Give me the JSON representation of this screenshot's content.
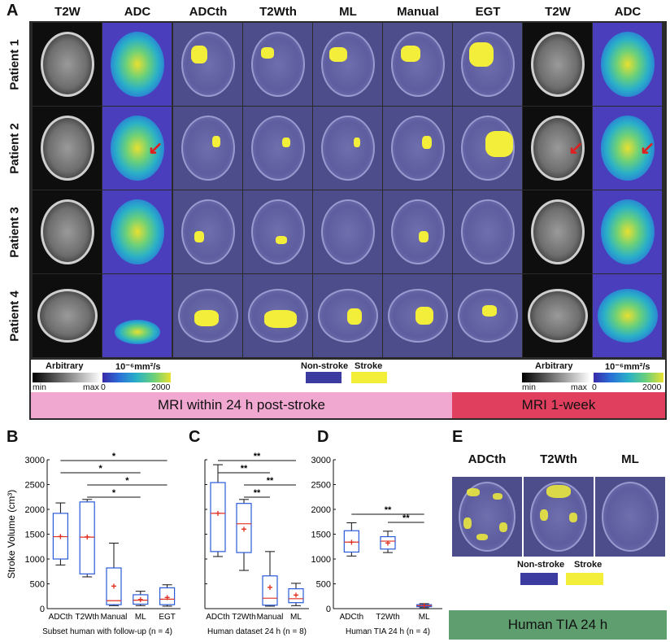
{
  "panels": {
    "A": "A",
    "B": "B",
    "C": "C",
    "D": "D",
    "E": "E"
  },
  "panelA": {
    "columns": [
      "T2W",
      "ADC",
      "ADCth",
      "T2Wth",
      "ML",
      "Manual",
      "EGT",
      "T2W",
      "ADC"
    ],
    "rows": [
      "Patient 1",
      "Patient 2",
      "Patient 3",
      "Patient 4"
    ],
    "legend": {
      "arbitrary": "Arbitrary",
      "min": "min",
      "max": "max",
      "adc_unit": "10⁻⁶mm²/s",
      "adc_min": "0",
      "adc_max": "2000",
      "nonstroke": "Non-stroke",
      "stroke": "Stroke"
    },
    "banner_left": "MRI within 24 h post-stroke",
    "banner_right": "MRI 1-week",
    "colors": {
      "frame": "#2a2a2a",
      "banner_left": "#f0a8d0",
      "banner_right": "#e0405e",
      "nonstroke": "#3c3ca0",
      "stroke": "#f2ee3a",
      "overlay_bg": "#4d4d8c",
      "adc_bg": "#4a3ebc"
    },
    "annotations": {
      "arrow_color": "#e02020"
    }
  },
  "chart_data": [
    {
      "panel": "B",
      "type": "box",
      "categories": [
        "ADCth",
        "T2Wth",
        "Manual",
        "ML",
        "EGT"
      ],
      "ylabel": "Stroke Volume (cm³)",
      "xlabel": "Subset human with follow-up (n = 4)",
      "ylim": [
        0,
        3000
      ],
      "yticks": [
        "0",
        "500",
        "1000",
        "1500",
        "2000",
        "2500",
        "3000"
      ],
      "boxes": [
        {
          "min": 880,
          "q1": 1000,
          "median": 1450,
          "q3": 1920,
          "max": 2130,
          "mean": 1450
        },
        {
          "min": 640,
          "q1": 700,
          "median": 1440,
          "q3": 2150,
          "max": 2200,
          "mean": 1440
        },
        {
          "min": 60,
          "q1": 80,
          "median": 160,
          "q3": 820,
          "max": 1320,
          "mean": 450
        },
        {
          "min": 60,
          "q1": 90,
          "median": 170,
          "q3": 280,
          "max": 350,
          "mean": 180
        },
        {
          "min": 50,
          "q1": 80,
          "median": 190,
          "q3": 420,
          "max": 480,
          "mean": 220
        }
      ],
      "significance": [
        {
          "from": 0,
          "to": 4,
          "label": "*"
        },
        {
          "from": 0,
          "to": 3,
          "label": "*"
        },
        {
          "from": 1,
          "to": 4,
          "label": "*"
        },
        {
          "from": 1,
          "to": 3,
          "label": "*"
        }
      ]
    },
    {
      "panel": "C",
      "type": "box",
      "categories": [
        "ADCth",
        "T2Wth",
        "Manual",
        "ML"
      ],
      "xlabel": "Human dataset 24 h (n = 8)",
      "ylim": [
        0,
        3000
      ],
      "boxes": [
        {
          "min": 1050,
          "q1": 1150,
          "median": 1920,
          "q3": 2540,
          "max": 2900,
          "mean": 1920
        },
        {
          "min": 770,
          "q1": 1130,
          "median": 1710,
          "q3": 2120,
          "max": 2200,
          "mean": 1600
        },
        {
          "min": 50,
          "q1": 70,
          "median": 210,
          "q3": 660,
          "max": 1150,
          "mean": 430
        },
        {
          "min": 60,
          "q1": 120,
          "median": 200,
          "q3": 400,
          "max": 510,
          "mean": 270
        }
      ],
      "significance": [
        {
          "from": 0,
          "to": 3,
          "label": "**"
        },
        {
          "from": 0,
          "to": 2,
          "label": "**"
        },
        {
          "from": 1,
          "to": 3,
          "label": "**"
        },
        {
          "from": 1,
          "to": 2,
          "label": "**"
        }
      ]
    },
    {
      "panel": "D",
      "type": "box",
      "categories": [
        "ADCth",
        "T2Wth",
        "ML"
      ],
      "xlabel": "Human TIA 24 h (n = 4)",
      "ylim": [
        0,
        3000
      ],
      "yticks": [
        "0",
        "500",
        "1000",
        "1500",
        "2000",
        "2500",
        "3000"
      ],
      "boxes": [
        {
          "min": 1060,
          "q1": 1140,
          "median": 1340,
          "q3": 1570,
          "max": 1730,
          "mean": 1340
        },
        {
          "min": 1130,
          "q1": 1200,
          "median": 1360,
          "q3": 1450,
          "max": 1560,
          "mean": 1320
        },
        {
          "min": 20,
          "q1": 40,
          "median": 60,
          "q3": 80,
          "max": 100,
          "mean": 60
        }
      ],
      "significance": [
        {
          "from": 0,
          "to": 2,
          "label": "**"
        },
        {
          "from": 1,
          "to": 2,
          "label": "**"
        }
      ]
    }
  ],
  "panelE": {
    "columns": [
      "ADCth",
      "T2Wth",
      "ML"
    ],
    "nonstroke": "Non-stroke",
    "stroke": "Stroke",
    "banner": "Human TIA 24 h",
    "banner_color": "#5f9e6e"
  }
}
